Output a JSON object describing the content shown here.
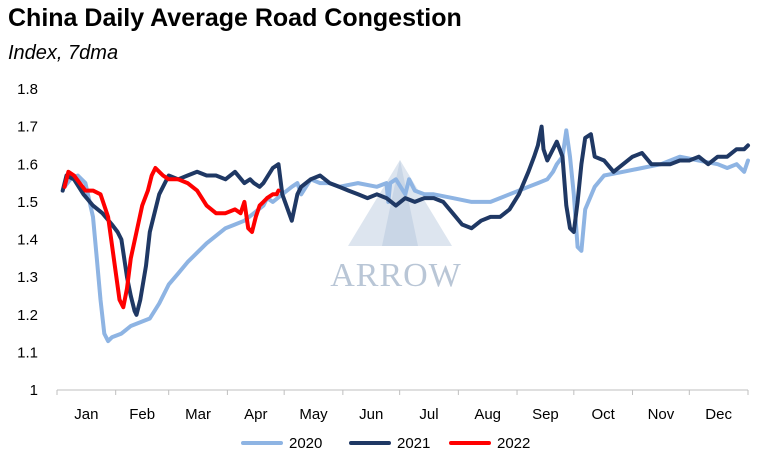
{
  "chart_data": {
    "type": "line",
    "title": "China Daily Average Road Congestion",
    "subtitle": "Index, 7dma",
    "xlabel": "",
    "ylabel": "",
    "x_unit": "day of year",
    "month_labels": [
      "Jan",
      "Feb",
      "Mar",
      "Apr",
      "May",
      "Jun",
      "Jul",
      "Aug",
      "Sep",
      "Oct",
      "Nov",
      "Dec"
    ],
    "month_starts": [
      1,
      32,
      60,
      91,
      121,
      152,
      182,
      213,
      244,
      274,
      305,
      335
    ],
    "xlim": [
      1,
      366
    ],
    "ylim": [
      1.0,
      1.8
    ],
    "yticks": [
      1,
      1.1,
      1.2,
      1.3,
      1.4,
      1.5,
      1.6,
      1.7,
      1.8
    ],
    "ytick_labels": [
      "1",
      "1.1",
      "1.2",
      "1.3",
      "1.4",
      "1.5",
      "1.6",
      "1.7",
      "1.8"
    ],
    "grid": false,
    "legend_position": "bottom-center",
    "watermark": "ARROW",
    "series": [
      {
        "name": "2020",
        "color": "#8eb4e3",
        "x": [
          5,
          8,
          12,
          16,
          20,
          22,
          24,
          26,
          28,
          30,
          35,
          40,
          45,
          50,
          55,
          60,
          65,
          70,
          80,
          90,
          95,
          100,
          105,
          110,
          112,
          115,
          120,
          125,
          128,
          130,
          135,
          140,
          145,
          150,
          160,
          170,
          175,
          176,
          177,
          180,
          185,
          187,
          190,
          195,
          200,
          210,
          220,
          230,
          235,
          240,
          245,
          250,
          255,
          260,
          263,
          265,
          268,
          270,
          272,
          274,
          276,
          278,
          280,
          285,
          290,
          300,
          310,
          320,
          330,
          340,
          350,
          355,
          360,
          364,
          366
        ],
        "values": [
          1.54,
          1.56,
          1.57,
          1.55,
          1.46,
          1.35,
          1.24,
          1.15,
          1.13,
          1.14,
          1.15,
          1.17,
          1.18,
          1.19,
          1.23,
          1.28,
          1.31,
          1.34,
          1.39,
          1.43,
          1.44,
          1.45,
          1.47,
          1.49,
          1.51,
          1.5,
          1.52,
          1.54,
          1.55,
          1.52,
          1.56,
          1.55,
          1.55,
          1.54,
          1.55,
          1.54,
          1.55,
          1.5,
          1.55,
          1.56,
          1.52,
          1.56,
          1.53,
          1.52,
          1.52,
          1.51,
          1.5,
          1.5,
          1.51,
          1.52,
          1.53,
          1.54,
          1.55,
          1.56,
          1.58,
          1.6,
          1.62,
          1.69,
          1.62,
          1.52,
          1.38,
          1.37,
          1.48,
          1.54,
          1.57,
          1.58,
          1.59,
          1.6,
          1.62,
          1.61,
          1.6,
          1.59,
          1.6,
          1.58,
          1.61
        ]
      },
      {
        "name": "2021",
        "color": "#1f3864",
        "x": [
          4,
          6,
          10,
          15,
          20,
          25,
          30,
          33,
          35,
          38,
          40,
          42,
          43,
          45,
          48,
          50,
          55,
          60,
          65,
          70,
          75,
          80,
          85,
          90,
          95,
          100,
          103,
          105,
          108,
          110,
          115,
          118,
          120,
          125,
          128,
          130,
          135,
          140,
          145,
          150,
          155,
          160,
          165,
          170,
          175,
          180,
          185,
          190,
          195,
          200,
          205,
          210,
          215,
          220,
          225,
          230,
          235,
          240,
          245,
          250,
          253,
          255,
          257,
          258,
          260,
          262,
          265,
          268,
          270,
          272,
          274,
          276,
          278,
          280,
          283,
          285,
          290,
          295,
          300,
          305,
          310,
          315,
          320,
          325,
          330,
          335,
          340,
          345,
          350,
          355,
          360,
          364,
          366
        ],
        "values": [
          1.53,
          1.57,
          1.56,
          1.52,
          1.49,
          1.47,
          1.44,
          1.42,
          1.4,
          1.3,
          1.25,
          1.21,
          1.2,
          1.24,
          1.33,
          1.42,
          1.52,
          1.57,
          1.56,
          1.57,
          1.58,
          1.57,
          1.57,
          1.56,
          1.58,
          1.55,
          1.56,
          1.55,
          1.54,
          1.55,
          1.59,
          1.6,
          1.52,
          1.45,
          1.52,
          1.54,
          1.56,
          1.57,
          1.55,
          1.54,
          1.53,
          1.52,
          1.51,
          1.52,
          1.51,
          1.49,
          1.51,
          1.5,
          1.51,
          1.51,
          1.5,
          1.47,
          1.44,
          1.43,
          1.45,
          1.46,
          1.46,
          1.48,
          1.52,
          1.58,
          1.62,
          1.65,
          1.7,
          1.64,
          1.61,
          1.63,
          1.66,
          1.62,
          1.49,
          1.43,
          1.42,
          1.5,
          1.6,
          1.67,
          1.68,
          1.62,
          1.61,
          1.58,
          1.6,
          1.62,
          1.63,
          1.6,
          1.6,
          1.6,
          1.61,
          1.61,
          1.62,
          1.6,
          1.62,
          1.62,
          1.64,
          1.64,
          1.65
        ]
      },
      {
        "name": "2022",
        "color": "#ff0000",
        "x": [
          5,
          7,
          10,
          13,
          16,
          20,
          24,
          28,
          31,
          34,
          36,
          38,
          40,
          43,
          46,
          49,
          51,
          53,
          55,
          57,
          60,
          65,
          70,
          75,
          80,
          85,
          90,
          95,
          98,
          100,
          102,
          104,
          106,
          108,
          110,
          112,
          115,
          117,
          118
        ],
        "values": [
          1.54,
          1.58,
          1.57,
          1.55,
          1.53,
          1.53,
          1.52,
          1.46,
          1.35,
          1.24,
          1.22,
          1.27,
          1.35,
          1.42,
          1.49,
          1.53,
          1.57,
          1.59,
          1.58,
          1.57,
          1.56,
          1.56,
          1.55,
          1.53,
          1.49,
          1.47,
          1.47,
          1.48,
          1.47,
          1.5,
          1.43,
          1.42,
          1.46,
          1.49,
          1.5,
          1.51,
          1.52,
          1.52,
          1.53
        ]
      }
    ]
  }
}
